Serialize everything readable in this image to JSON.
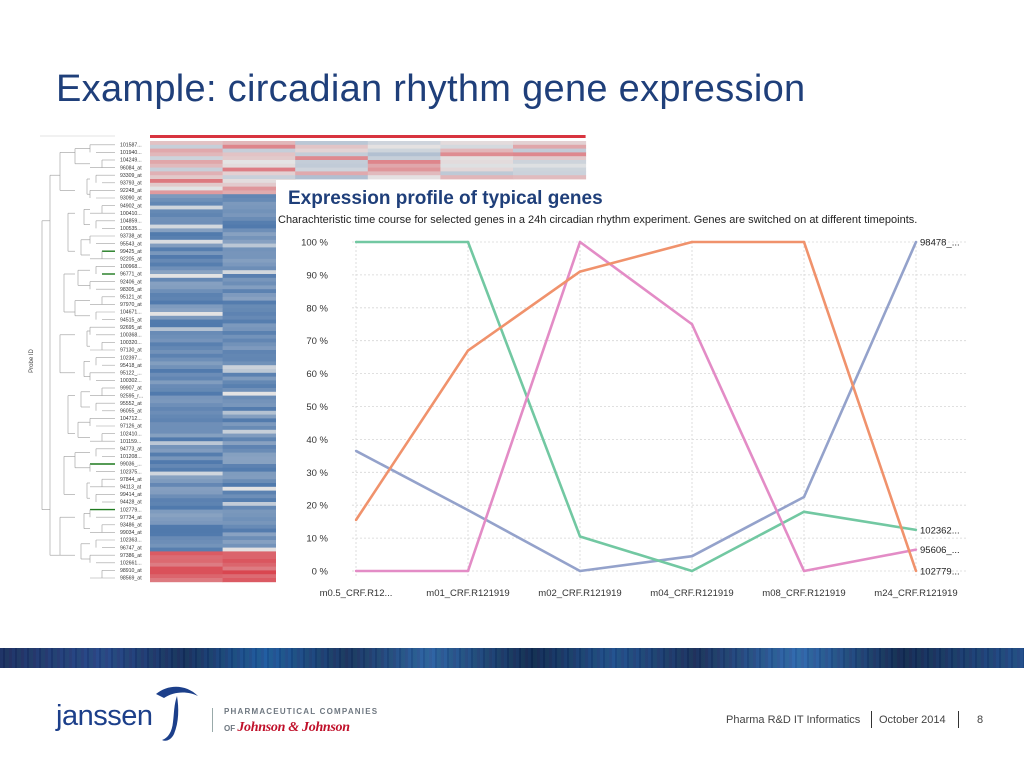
{
  "slide": {
    "title": "Example: circadian rhythm gene expression",
    "page_number": "8"
  },
  "footer": {
    "department": "Pharma R&D IT Informatics",
    "date": "October 2014"
  },
  "branding": {
    "logo": "janssen",
    "pharma_text": "PHARMACEUTICAL COMPANIES",
    "of_text": "OF",
    "jnj_text": "Johnson & Johnson",
    "brand_color": "#1c3f8a"
  },
  "heatmap": {
    "axis_label": "Probe ID",
    "row_labels": [
      "101587...",
      "101940...",
      "104249...",
      "96084_at",
      "93309_at",
      "93793_at",
      "92248_at",
      "93090_at",
      "94902_at",
      "100410...",
      "104859...",
      "100535...",
      "93738_at",
      "95543_at",
      "99425_at",
      "92205_at",
      "100968...",
      "96771_at",
      "92406_at",
      "98305_at",
      "95121_at",
      "97970_at",
      "104671...",
      "94515_at",
      "92695_at",
      "100368...",
      "100320...",
      "97130_at",
      "102397...",
      "95418_at",
      "95122_...",
      "100302...",
      "99907_at",
      "92595_r...",
      "95552_at",
      "96055_at",
      "104712...",
      "97126_at",
      "102410...",
      "101159...",
      "94773_at",
      "101208...",
      "99036_...",
      "102375...",
      "97844_at",
      "94113_at",
      "99414_at",
      "94428_at",
      "102779...",
      "97734_at",
      "93486_at",
      "99034_at",
      "102363...",
      "96747_at",
      "97386_at",
      "102661...",
      "98910_at",
      "98569_at"
    ],
    "highlighted_rows": [
      14,
      17,
      42,
      48
    ],
    "colors": {
      "high": "#d8343f",
      "mid": "#e4e4e4",
      "low": "#3f6da6"
    }
  },
  "chart_data": {
    "type": "line",
    "title": "Expression profile of typical genes",
    "subtitle": "Charachteristic time course for selected genes in a 24h circadian rhythm experiment. Genes are switched on at different timepoints.",
    "categories": [
      "m0.5_CRF.R12...",
      "m01_CRF.R121919",
      "m02_CRF.R121919",
      "m04_CRF.R121919",
      "m08_CRF.R121919",
      "m24_CRF.R121919"
    ],
    "ylim": [
      0,
      100
    ],
    "yticks": [
      "0 %",
      "10 %",
      "20 %",
      "30 %",
      "40 %",
      "50 %",
      "60 %",
      "70 %",
      "80 %",
      "90 %",
      "100 %"
    ],
    "grid": true,
    "series": [
      {
        "name": "98478_...",
        "color": "#94a2cb",
        "values": [
          36.5,
          18.5,
          0,
          4.5,
          22.5,
          100
        ]
      },
      {
        "name": "102362...",
        "color": "#72c8a2",
        "values": [
          100,
          100,
          10.5,
          0,
          18,
          12.5
        ]
      },
      {
        "name": "95606_...",
        "color": "#e38cc6",
        "values": [
          0,
          0,
          100,
          75,
          0,
          6.5
        ]
      },
      {
        "name": "102779...",
        "color": "#f0926c",
        "values": [
          15.5,
          67,
          91,
          100,
          100,
          0
        ]
      }
    ]
  }
}
